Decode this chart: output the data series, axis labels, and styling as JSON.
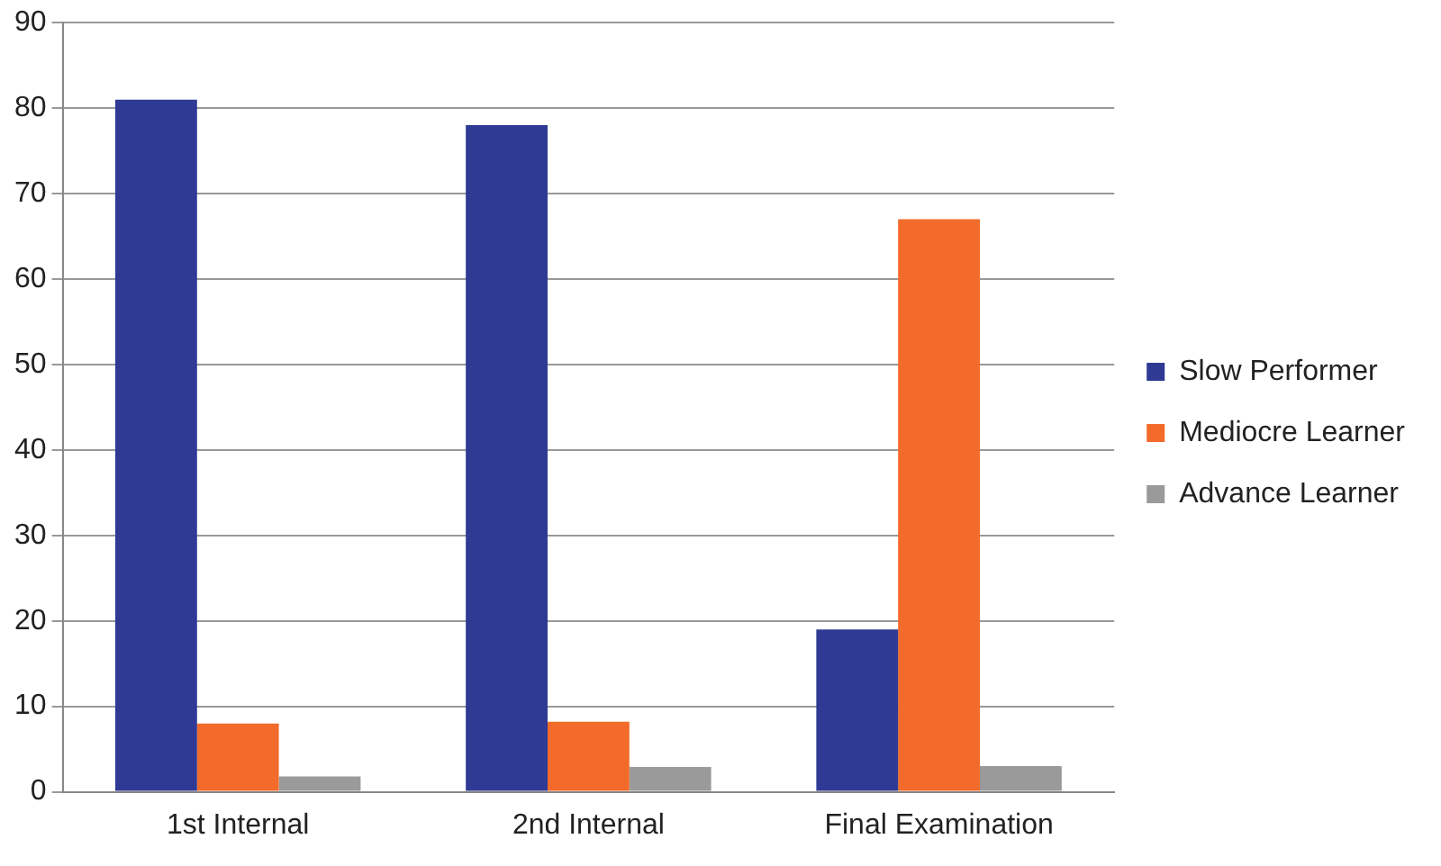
{
  "chart_data": {
    "type": "bar",
    "categories": [
      "1st Internal",
      "2nd Internal",
      "Final Examination"
    ],
    "series": [
      {
        "name": "Slow Performer",
        "color": "#2e3a94",
        "values": [
          81,
          78,
          19
        ]
      },
      {
        "name": "Mediocre Learner",
        "color": "#f26b2a",
        "values": [
          8,
          8.2,
          67
        ]
      },
      {
        "name": "Advance Learner",
        "color": "#9a9a9a",
        "values": [
          1.8,
          2.9,
          3
        ]
      }
    ],
    "ylim": [
      0,
      90
    ],
    "yticks": [
      0,
      10,
      20,
      30,
      40,
      50,
      60,
      70,
      80,
      90
    ],
    "grid": "y",
    "legend": "right"
  }
}
